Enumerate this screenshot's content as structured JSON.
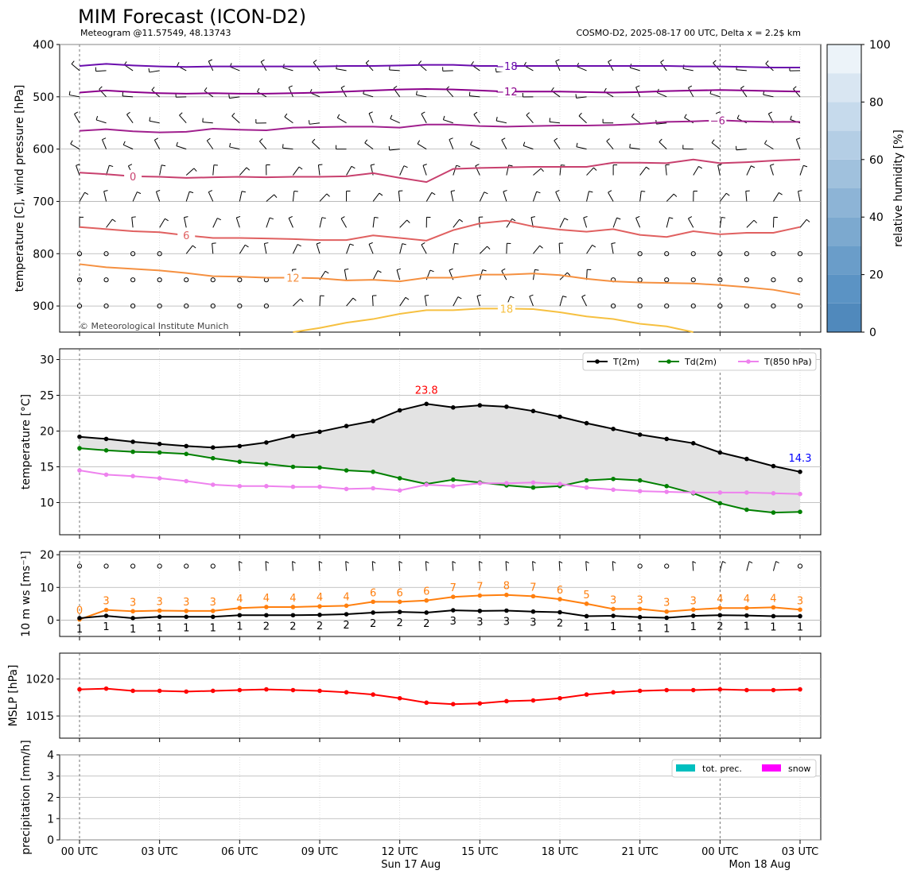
{
  "title": "MIM Forecast (ICON-D2)",
  "subtitle_left": "Meteogram @11.57549, 48.13743",
  "subtitle_right": "COSMO-D2, 2025-08-17 00 UTC, Delta x = 2.2$ km",
  "copyright": "© Meteorological Institute Munich",
  "time_axis": {
    "tick_labels": [
      "00 UTC",
      "03 UTC",
      "06 UTC",
      "09 UTC",
      "12 UTC",
      "15 UTC",
      "18 UTC",
      "21 UTC",
      "00 UTC",
      "03 UTC"
    ],
    "tick_hours": [
      0,
      3,
      6,
      9,
      12,
      15,
      18,
      21,
      24,
      27
    ],
    "day_labels": [
      {
        "hour": 12,
        "text": "Sun 17 Aug"
      },
      {
        "hour": 24,
        "text": "Mon 18 Aug"
      }
    ]
  },
  "colors": {
    "t2m": "#000000",
    "td2m": "#008000",
    "t850": "#ee82ee",
    "ws_mean": "#000000",
    "ws_gust": "#ff7f0e",
    "mslp": "#ff0000",
    "tot_prec": "#00bfbf",
    "snow": "#ff00ff",
    "max_label": "#ff0000",
    "min_label": "#0000ff"
  },
  "chart_data": [
    {
      "type": "heatmap",
      "name": "pressure_panel",
      "ylabel": "temperature [C], wind pressure [hPa]",
      "y_axis": "pressure, inverted",
      "ylim": [
        950,
        400
      ],
      "yticks": [
        400,
        500,
        600,
        700,
        800,
        900
      ],
      "grid": true,
      "hours": [
        0,
        1,
        2,
        3,
        4,
        5,
        6,
        7,
        8,
        9,
        10,
        11,
        12,
        13,
        14,
        15,
        16,
        17,
        18,
        19,
        20,
        21,
        22,
        23,
        24,
        25,
        26,
        27
      ],
      "colorbar": {
        "label": "relative humidity [%]",
        "ticks": [
          0,
          20,
          40,
          60,
          80,
          100
        ]
      },
      "isotherms": [
        {
          "label": "-18",
          "color": "#6a0dad",
          "pressure": [
            441,
            437,
            440,
            442,
            443,
            442,
            442,
            442,
            442,
            442,
            441,
            441,
            440,
            439,
            439,
            441,
            441,
            441,
            441,
            441,
            441,
            441,
            441,
            442,
            442,
            443,
            444,
            444
          ]
        },
        {
          "label": "-12",
          "color": "#8b008b",
          "pressure": [
            492,
            488,
            491,
            493,
            494,
            493,
            494,
            494,
            493,
            492,
            490,
            488,
            486,
            485,
            486,
            488,
            490,
            490,
            490,
            491,
            492,
            491,
            489,
            488,
            487,
            488,
            489,
            490
          ]
        },
        {
          "label": "-6",
          "color": "#a0208e",
          "pressure": [
            565,
            562,
            566,
            568,
            567,
            561,
            563,
            564,
            559,
            558,
            557,
            557,
            559,
            553,
            553,
            556,
            557,
            556,
            555,
            555,
            554,
            552,
            548,
            547,
            545,
            547,
            548,
            548
          ]
        },
        {
          "label": "0",
          "color": "#c8406e",
          "pressure": [
            645,
            648,
            652,
            653,
            655,
            654,
            653,
            654,
            653,
            653,
            652,
            646,
            655,
            663,
            638,
            636,
            635,
            634,
            634,
            634,
            626,
            626,
            627,
            620,
            627,
            625,
            622,
            620
          ]
        },
        {
          "label": "6",
          "color": "#e06060",
          "pressure": [
            749,
            753,
            757,
            759,
            765,
            770,
            770,
            771,
            772,
            774,
            774,
            765,
            770,
            775,
            755,
            742,
            737,
            748,
            754,
            758,
            753,
            764,
            768,
            757,
            763,
            760,
            760,
            749
          ]
        },
        {
          "label": "12",
          "color": "#f59040",
          "pressure": [
            820,
            826,
            829,
            832,
            837,
            843,
            844,
            846,
            846,
            847,
            851,
            850,
            853,
            846,
            846,
            840,
            840,
            838,
            841,
            848,
            853,
            855,
            856,
            857,
            860,
            864,
            869,
            878
          ]
        },
        {
          "label": "18",
          "color": "#f6c040",
          "pressure": [
            null,
            null,
            null,
            null,
            null,
            null,
            null,
            null,
            952,
            942,
            932,
            925,
            915,
            908,
            908,
            905,
            905,
            906,
            912,
            920,
            925,
            934,
            939,
            950,
            null,
            null,
            null,
            null
          ]
        }
      ],
      "wind_barbs": "barbs at each hour on 50 hPa spacing; calm circles at low levels"
    },
    {
      "type": "line",
      "name": "surface_temperature_panel",
      "ylabel": "temperature [$^\\circ$C]",
      "ylim": [
        5.5,
        31.5
      ],
      "yticks": [
        10,
        15,
        20,
        25,
        30
      ],
      "grid": true,
      "legend": "top-right",
      "x": [
        0,
        1,
        2,
        3,
        4,
        5,
        6,
        7,
        8,
        9,
        10,
        11,
        12,
        13,
        14,
        15,
        16,
        17,
        18,
        19,
        20,
        21,
        22,
        23,
        24,
        25,
        26,
        27
      ],
      "series": [
        {
          "name": "T(2m)",
          "values": [
            19.2,
            18.9,
            18.5,
            18.2,
            17.9,
            17.7,
            17.9,
            18.4,
            19.3,
            19.9,
            20.7,
            21.4,
            22.9,
            23.8,
            23.3,
            23.6,
            23.4,
            22.8,
            22.0,
            21.1,
            20.3,
            19.5,
            18.9,
            18.3,
            17.0,
            16.1,
            15.1,
            14.3
          ]
        },
        {
          "name": "Td(2m)",
          "values": [
            17.6,
            17.3,
            17.1,
            17.0,
            16.8,
            16.2,
            15.7,
            15.4,
            15.0,
            14.9,
            14.5,
            14.3,
            13.4,
            12.6,
            13.2,
            12.8,
            12.4,
            12.1,
            12.3,
            13.1,
            13.3,
            13.1,
            12.3,
            11.3,
            9.9,
            9.0,
            8.6,
            8.7
          ]
        },
        {
          "name": "T(850 hPa)",
          "values": [
            14.5,
            13.9,
            13.7,
            13.4,
            13.0,
            12.5,
            12.3,
            12.3,
            12.2,
            12.2,
            11.9,
            12.0,
            11.7,
            12.5,
            12.3,
            12.7,
            12.7,
            12.8,
            12.6,
            12.1,
            11.8,
            11.6,
            11.5,
            11.4,
            11.4,
            11.4,
            11.3,
            11.2
          ]
        }
      ],
      "annotations": [
        {
          "text": "23.8",
          "x": 13,
          "y": 23.8,
          "color": "#ff0000"
        },
        {
          "text": "14.3",
          "x": 27,
          "y": 14.3,
          "color": "#0000ff"
        }
      ]
    },
    {
      "type": "line",
      "name": "wind_panel",
      "ylabel": "10 m ws [ms$^{-1}$]",
      "ylim": [
        -5,
        21
      ],
      "yticks": [
        0,
        10,
        20
      ],
      "grid": true,
      "x": [
        0,
        1,
        2,
        3,
        4,
        5,
        6,
        7,
        8,
        9,
        10,
        11,
        12,
        13,
        14,
        15,
        16,
        17,
        18,
        19,
        20,
        21,
        22,
        23,
        24,
        25,
        26,
        27
      ],
      "series": [
        {
          "name": "mean",
          "values": [
            0.6,
            1.3,
            0.6,
            1.0,
            1.0,
            1.0,
            1.5,
            1.5,
            1.5,
            1.6,
            1.8,
            2.3,
            2.5,
            2.3,
            3.0,
            2.8,
            2.9,
            2.6,
            2.4,
            1.2,
            1.3,
            0.9,
            0.7,
            1.3,
            1.5,
            1.4,
            1.2,
            1.2
          ]
        },
        {
          "name": "gust",
          "values": [
            0.2,
            3.1,
            2.7,
            2.9,
            2.8,
            2.8,
            3.7,
            4.0,
            4.0,
            4.2,
            4.4,
            5.6,
            5.6,
            6.0,
            7.1,
            7.5,
            7.7,
            7.3,
            6.4,
            5.0,
            3.4,
            3.4,
            2.6,
            3.2,
            3.7,
            3.7,
            3.9,
            3.2
          ]
        }
      ],
      "gust_labels": [
        "0",
        "3",
        "3",
        "3",
        "3",
        "3",
        "4",
        "4",
        "4",
        "4",
        "4",
        "6",
        "6",
        "6",
        "7",
        "7",
        "8",
        "7",
        "6",
        "5",
        "3",
        "3",
        "3",
        "3",
        "4",
        "4",
        "4",
        "3"
      ],
      "mean_labels": [
        "1",
        "1",
        "1",
        "1",
        "1",
        "1",
        "1",
        "2",
        "2",
        "2",
        "2",
        "2",
        "2",
        "2",
        "3",
        "3",
        "3",
        "3",
        "2",
        "1",
        "1",
        "1",
        "1",
        "1",
        "2",
        "1",
        "1",
        "1"
      ]
    },
    {
      "type": "line",
      "name": "mslp_panel",
      "ylabel": "MSLP [hPa]",
      "ylim": [
        1012.0,
        1023.5
      ],
      "yticks": [
        1015,
        1020
      ],
      "grid": true,
      "x": [
        0,
        1,
        2,
        3,
        4,
        5,
        6,
        7,
        8,
        9,
        10,
        11,
        12,
        13,
        14,
        15,
        16,
        17,
        18,
        19,
        20,
        21,
        22,
        23,
        24,
        25,
        26,
        27
      ],
      "series": [
        {
          "name": "MSLP",
          "values": [
            1018.6,
            1018.7,
            1018.4,
            1018.4,
            1018.3,
            1018.4,
            1018.5,
            1018.6,
            1018.5,
            1018.4,
            1018.2,
            1017.9,
            1017.4,
            1016.8,
            1016.6,
            1016.7,
            1017.0,
            1017.1,
            1017.4,
            1017.9,
            1018.2,
            1018.4,
            1018.5,
            1018.5,
            1018.6,
            1018.5,
            1018.5,
            1018.6
          ]
        }
      ]
    },
    {
      "type": "bar",
      "name": "precipitation_panel",
      "ylabel": "precipitation [mm/h]",
      "ylim": [
        0,
        4
      ],
      "yticks": [
        0,
        1,
        2,
        3,
        4
      ],
      "grid": true,
      "legend": "top-right",
      "x": [
        0,
        1,
        2,
        3,
        4,
        5,
        6,
        7,
        8,
        9,
        10,
        11,
        12,
        13,
        14,
        15,
        16,
        17,
        18,
        19,
        20,
        21,
        22,
        23,
        24,
        25,
        26,
        27
      ],
      "series": [
        {
          "name": "tot. prec.",
          "values": [
            0,
            0,
            0,
            0,
            0,
            0,
            0,
            0,
            0,
            0,
            0,
            0,
            0,
            0,
            0,
            0,
            0,
            0,
            0,
            0,
            0,
            0,
            0,
            0,
            0,
            0,
            0,
            0
          ]
        },
        {
          "name": "snow",
          "values": [
            0,
            0,
            0,
            0,
            0,
            0,
            0,
            0,
            0,
            0,
            0,
            0,
            0,
            0,
            0,
            0,
            0,
            0,
            0,
            0,
            0,
            0,
            0,
            0,
            0,
            0,
            0,
            0
          ]
        }
      ]
    }
  ]
}
